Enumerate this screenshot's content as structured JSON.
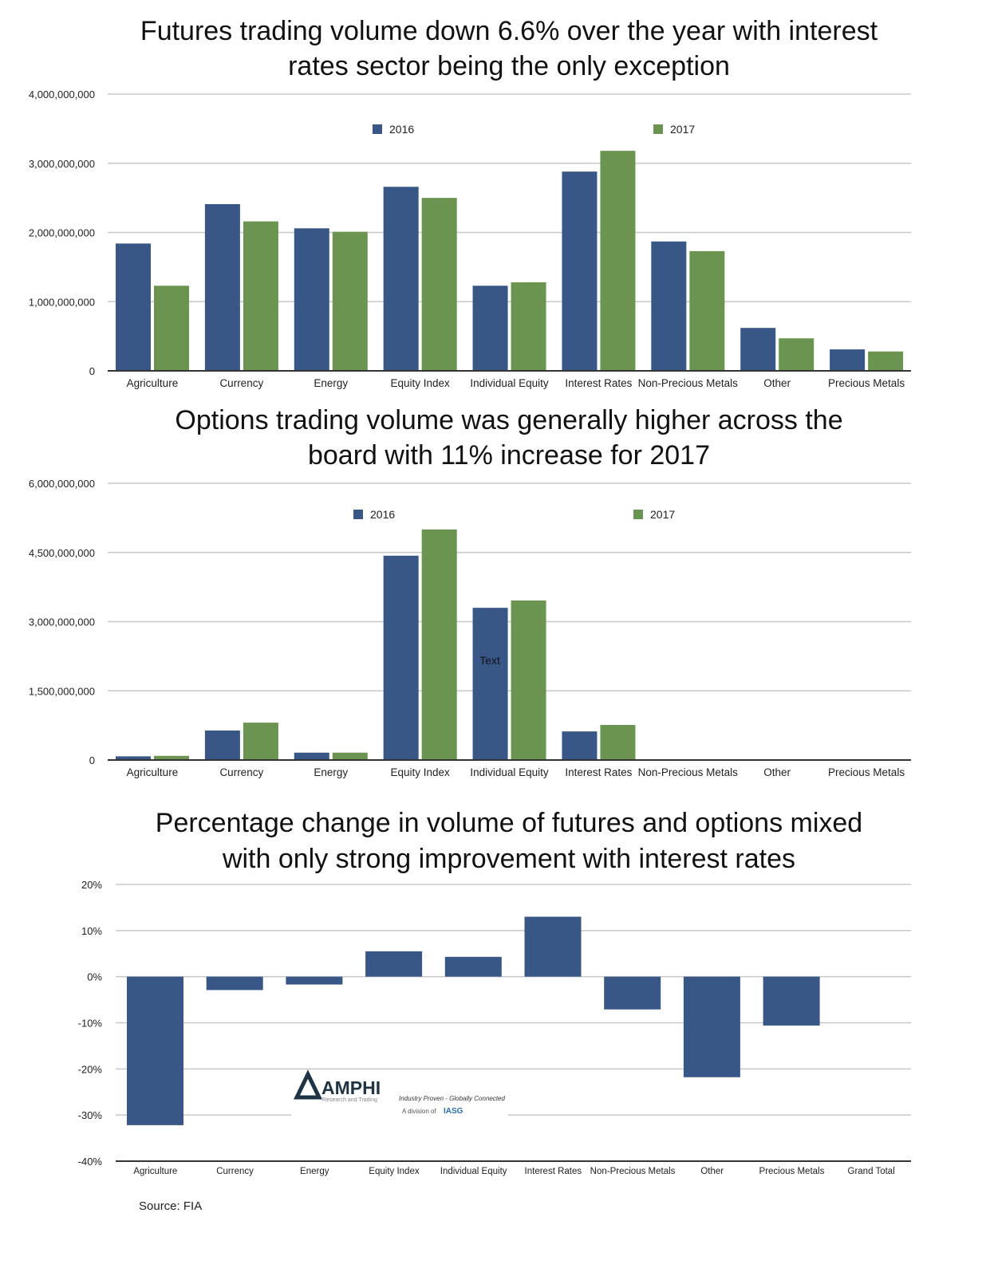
{
  "colors": {
    "s2016": "#385787",
    "s2017": "#6a944f",
    "grid": "#c8c8c8",
    "axis": "#333333"
  },
  "chart_data": [
    {
      "type": "bar",
      "title": [
        "Futures trading volume down 6.6% over the year with interest",
        "rates sector being the only exception"
      ],
      "categories": [
        "Agriculture",
        "Currency",
        "Energy",
        "Equity Index",
        "Individual Equity",
        "Interest Rates",
        "Non-Precious Metals",
        "Other",
        "Precious Metals"
      ],
      "series": [
        {
          "name": "2016",
          "values": [
            1840000000,
            2410000000,
            2060000000,
            2660000000,
            1230000000,
            2880000000,
            1870000000,
            620000000,
            310000000
          ]
        },
        {
          "name": "2017",
          "values": [
            1230000000,
            2160000000,
            2010000000,
            2500000000,
            1280000000,
            3180000000,
            1730000000,
            470000000,
            280000000
          ]
        }
      ],
      "ylim": [
        0,
        4000000000
      ],
      "yticks": [
        "0",
        "1,000,000,000",
        "2,000,000,000",
        "3,000,000,000",
        "4,000,000,000"
      ],
      "grid": true,
      "legend": "top"
    },
    {
      "type": "bar",
      "title": [
        "Options trading volume was generally higher across the",
        "board with 11% increase  for 2017"
      ],
      "categories": [
        "Agriculture",
        "Currency",
        "Energy",
        "Equity Index",
        "Individual Equity",
        "Interest Rates",
        "Non-Precious Metals",
        "Other",
        "Precious Metals"
      ],
      "series": [
        {
          "name": "2016",
          "values": [
            80000000,
            640000000,
            160000000,
            4430000000,
            3300000000,
            620000000,
            0,
            0,
            0
          ]
        },
        {
          "name": "2017",
          "values": [
            90000000,
            810000000,
            160000000,
            5000000000,
            3460000000,
            760000000,
            0,
            0,
            0
          ]
        }
      ],
      "ylim": [
        0,
        6000000000
      ],
      "yticks": [
        "0",
        "1,500,000,000",
        "3,000,000,000",
        "4,500,000,000",
        "6,000,000,000"
      ],
      "annotation": "Text",
      "grid": true,
      "legend": "top"
    },
    {
      "type": "bar",
      "title": [
        "Percentage change in volume of futures and options mixed",
        "with only strong improvement with interest rates"
      ],
      "categories": [
        "Agriculture",
        "Currency",
        "Energy",
        "Equity Index",
        "Individual Equity",
        "Interest Rates",
        "Non-Precious Metals",
        "Other",
        "Precious Metals",
        "Grand Total"
      ],
      "values": [
        -32.2,
        -2.9,
        -1.7,
        5.5,
        4.3,
        13.0,
        -7.1,
        -21.8,
        -10.6,
        0
      ],
      "ylim": [
        -40,
        20
      ],
      "yticks": [
        "-40%",
        "-30%",
        "-20%",
        "-10%",
        "0%",
        "10%",
        "20%"
      ],
      "grid": true
    }
  ],
  "logo": {
    "name": "AMPHI",
    "sub": "Research and Trading",
    "tagline": "Industry Proven - Globally Connected",
    "division": "A division of",
    "division_brand": "IASG"
  },
  "source": "Source: FIA"
}
